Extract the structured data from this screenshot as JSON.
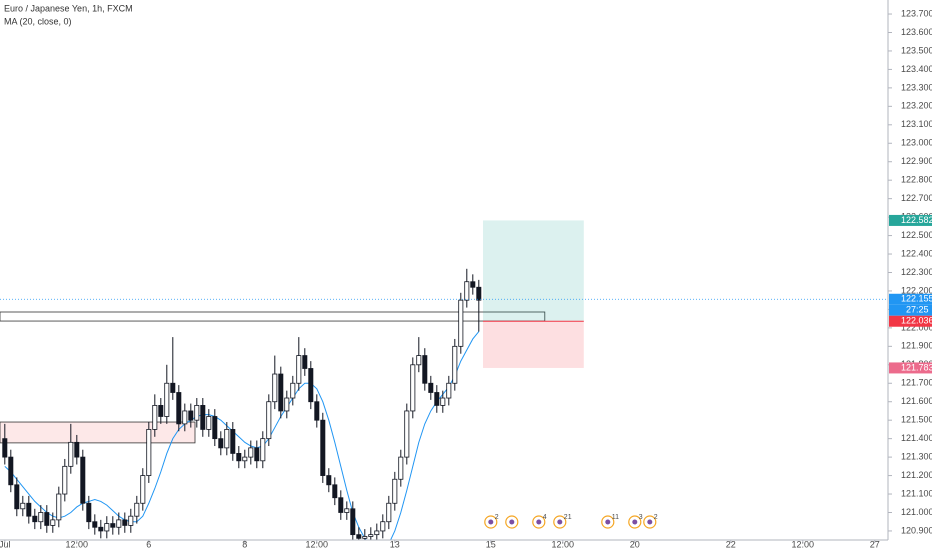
{
  "chart_data": {
    "type": "candlestick",
    "title": "Euro / Japanese Yen, 1h, FXCM",
    "up_color": "#ffffff",
    "down_color": "#131722",
    "open": [
      121.4,
      121.3,
      121.15,
      121.02,
      121.05,
      120.98,
      120.95,
      121.0,
      120.93,
      120.96,
      121.1,
      121.25,
      121.38,
      121.3,
      121.05,
      120.95,
      120.92,
      120.9,
      120.94,
      120.92,
      120.96,
      120.93,
      120.98,
      121.05,
      121.2,
      121.45,
      121.58,
      121.52,
      121.7,
      121.65,
      121.48,
      121.55,
      121.5,
      121.58,
      121.45,
      121.52,
      121.4,
      121.35,
      121.45,
      121.32,
      121.28,
      121.3,
      121.35,
      121.28,
      121.4,
      121.6,
      121.75,
      121.55,
      121.62,
      121.7,
      121.85,
      121.78,
      121.6,
      121.5,
      121.2,
      121.15,
      121.08,
      121.0,
      121.02,
      120.88,
      120.86,
      120.87,
      120.88,
      120.9,
      120.95,
      121.05,
      121.18,
      121.3,
      121.55,
      121.8,
      121.85,
      121.7,
      121.65,
      121.58,
      121.62,
      121.7,
      121.9,
      122.15,
      122.25,
      122.22
    ],
    "high": [
      121.48,
      121.34,
      121.19,
      121.09,
      121.09,
      121.02,
      121.04,
      121.04,
      121.0,
      121.14,
      121.29,
      121.48,
      121.42,
      121.34,
      121.09,
      120.99,
      120.96,
      120.98,
      120.98,
      121.0,
      121.0,
      121.02,
      121.09,
      121.24,
      121.49,
      121.64,
      121.62,
      121.8,
      121.95,
      121.69,
      121.59,
      121.59,
      121.62,
      121.62,
      121.56,
      121.56,
      121.44,
      121.49,
      121.49,
      121.36,
      121.34,
      121.39,
      121.39,
      121.44,
      121.64,
      121.85,
      121.79,
      121.66,
      121.74,
      121.95,
      121.89,
      121.82,
      121.64,
      121.54,
      121.24,
      121.19,
      121.12,
      121.06,
      121.06,
      120.92,
      120.91,
      120.92,
      120.94,
      120.99,
      121.09,
      121.22,
      121.34,
      121.59,
      121.84,
      121.95,
      121.89,
      121.74,
      121.69,
      121.66,
      121.74,
      121.94,
      122.19,
      122.32,
      122.29,
      122.26
    ],
    "low": [
      121.26,
      121.11,
      120.98,
      120.98,
      120.94,
      120.91,
      120.91,
      120.89,
      120.89,
      120.92,
      121.06,
      121.21,
      121.26,
      121.01,
      120.91,
      120.88,
      120.86,
      120.86,
      120.88,
      120.88,
      120.89,
      120.89,
      120.94,
      121.01,
      121.16,
      121.41,
      121.48,
      121.48,
      121.61,
      121.44,
      121.44,
      121.46,
      121.46,
      121.41,
      121.41,
      121.36,
      121.31,
      121.31,
      121.28,
      121.24,
      121.24,
      121.26,
      121.24,
      121.24,
      121.36,
      121.56,
      121.51,
      121.51,
      121.58,
      121.66,
      121.74,
      121.56,
      121.46,
      121.16,
      121.11,
      121.04,
      120.96,
      120.96,
      120.84,
      120.82,
      120.82,
      120.83,
      120.84,
      120.86,
      120.91,
      121.01,
      121.14,
      121.26,
      121.51,
      121.76,
      121.66,
      121.61,
      121.54,
      121.54,
      121.58,
      121.66,
      121.86,
      122.11,
      122.18,
      121.98
    ],
    "close": [
      121.3,
      121.15,
      121.02,
      121.05,
      120.98,
      120.95,
      121.0,
      120.93,
      120.96,
      121.1,
      121.25,
      121.38,
      121.3,
      121.05,
      120.95,
      120.92,
      120.9,
      120.94,
      120.92,
      120.96,
      120.93,
      120.98,
      121.05,
      121.2,
      121.45,
      121.58,
      121.52,
      121.7,
      121.65,
      121.48,
      121.55,
      121.5,
      121.58,
      121.45,
      121.52,
      121.4,
      121.35,
      121.45,
      121.32,
      121.28,
      121.3,
      121.35,
      121.28,
      121.4,
      121.6,
      121.75,
      121.55,
      121.62,
      121.7,
      121.85,
      121.78,
      121.6,
      121.5,
      121.2,
      121.15,
      121.08,
      121.0,
      121.02,
      120.88,
      120.86,
      120.87,
      120.88,
      120.9,
      120.95,
      121.05,
      121.18,
      121.3,
      121.55,
      121.8,
      121.85,
      121.7,
      121.65,
      121.58,
      121.62,
      121.7,
      121.9,
      122.15,
      122.25,
      122.22,
      122.15
    ],
    "ma": {
      "name": "MA (20, close, 0)",
      "color": "#2196f3",
      "values": [
        121.25,
        121.22,
        121.18,
        121.14,
        121.1,
        121.06,
        121.03,
        121.0,
        120.98,
        120.97,
        120.98,
        121.0,
        121.03,
        121.05,
        121.06,
        121.07,
        121.06,
        121.04,
        121.01,
        120.98,
        120.96,
        120.95,
        120.95,
        120.98,
        121.05,
        121.13,
        121.22,
        121.32,
        121.4,
        121.45,
        121.48,
        121.5,
        121.52,
        121.53,
        121.53,
        121.52,
        121.5,
        121.47,
        121.44,
        121.41,
        121.38,
        121.36,
        121.35,
        121.36,
        121.4,
        121.46,
        121.52,
        121.57,
        121.62,
        121.67,
        121.7,
        121.7,
        121.67,
        121.6,
        121.5,
        121.38,
        121.25,
        121.12,
        121.0,
        120.92,
        120.86,
        120.82,
        120.8,
        120.8,
        120.83,
        120.9,
        121.0,
        121.12,
        121.25,
        121.38,
        121.48,
        121.55,
        121.6,
        121.64,
        121.68,
        121.74,
        121.82,
        121.88,
        121.94,
        121.98
      ]
    },
    "xlim": [
      -0.8,
      147.2
    ],
    "xticks": [
      {
        "value": 0,
        "label": "Jul"
      },
      {
        "value": 12,
        "label": "12:00"
      },
      {
        "value": 24,
        "label": "6"
      },
      {
        "value": 40,
        "label": "8"
      },
      {
        "value": 52,
        "label": "12:00"
      },
      {
        "value": 65,
        "label": "13"
      },
      {
        "value": 81,
        "label": "15"
      },
      {
        "value": 93,
        "label": "12:00"
      },
      {
        "value": 105,
        "label": "20"
      },
      {
        "value": 121,
        "label": "22"
      },
      {
        "value": 133,
        "label": "12:00"
      },
      {
        "value": 145,
        "label": "27"
      }
    ],
    "ylim": [
      120.851,
      123.776
    ],
    "yticks": [
      {
        "value": 120.9,
        "label": "120.900"
      },
      {
        "value": 121.0,
        "label": "121.000"
      },
      {
        "value": 121.1,
        "label": "121.100"
      },
      {
        "value": 121.2,
        "label": "121.200"
      },
      {
        "value": 121.3,
        "label": "121.300"
      },
      {
        "value": 121.4,
        "label": "121.400"
      },
      {
        "value": 121.5,
        "label": "121.500"
      },
      {
        "value": 121.6,
        "label": "121.600"
      },
      {
        "value": 121.7,
        "label": "121.700"
      },
      {
        "value": 121.8,
        "label": "121.800"
      },
      {
        "value": 121.9,
        "label": "121.900"
      },
      {
        "value": 122.0,
        "label": "122.000"
      },
      {
        "value": 122.1,
        "label": "122.100"
      },
      {
        "value": 122.2,
        "label": "122.200"
      },
      {
        "value": 122.3,
        "label": "122.300"
      },
      {
        "value": 122.4,
        "label": "122.400"
      },
      {
        "value": 122.5,
        "label": "122.500"
      },
      {
        "value": 122.6,
        "label": "122.600"
      },
      {
        "value": 122.7,
        "label": "122.700"
      },
      {
        "value": 122.8,
        "label": "122.800"
      },
      {
        "value": 122.9,
        "label": "122.900"
      },
      {
        "value": 123.0,
        "label": "123.000"
      },
      {
        "value": 123.1,
        "label": "123.100"
      },
      {
        "value": 123.2,
        "label": "123.200"
      },
      {
        "value": 123.3,
        "label": "123.300"
      },
      {
        "value": 123.4,
        "label": "123.400"
      },
      {
        "value": 123.5,
        "label": "123.500"
      },
      {
        "value": 123.6,
        "label": "123.600"
      },
      {
        "value": 123.7,
        "label": "123.700"
      }
    ],
    "position": {
      "x": [
        79.7,
        96.5
      ],
      "entry": 122.036,
      "target": 122.582,
      "stop": 121.783
    },
    "zones": [
      {
        "x": [
          -0.8,
          31.7
        ],
        "y": [
          121.377,
          121.49
        ],
        "fill": "#fde8e8"
      },
      {
        "x": [
          -0.8,
          90
        ],
        "y": [
          122.037,
          122.086
        ],
        "fill": "none"
      }
    ],
    "price_tags": [
      {
        "value": 122.582,
        "label": "122.582",
        "color": "#26a69a"
      },
      {
        "value": 122.155,
        "label": "122.155",
        "color": "#2196f3",
        "countdown": "27:25"
      },
      {
        "value": 122.036,
        "label": "122.036",
        "color": "#f23645"
      },
      {
        "value": 121.783,
        "label": "121.783",
        "color": "#ec6b8c"
      }
    ],
    "events": [
      {
        "x": 81,
        "label": "2"
      },
      {
        "x": 84.5
      },
      {
        "x": 89,
        "label": "4"
      },
      {
        "x": 92.5,
        "label": "21"
      },
      {
        "x": 100.5,
        "label": "11"
      },
      {
        "x": 105,
        "label": "3"
      },
      {
        "x": 107.5,
        "label": "2"
      }
    ]
  }
}
